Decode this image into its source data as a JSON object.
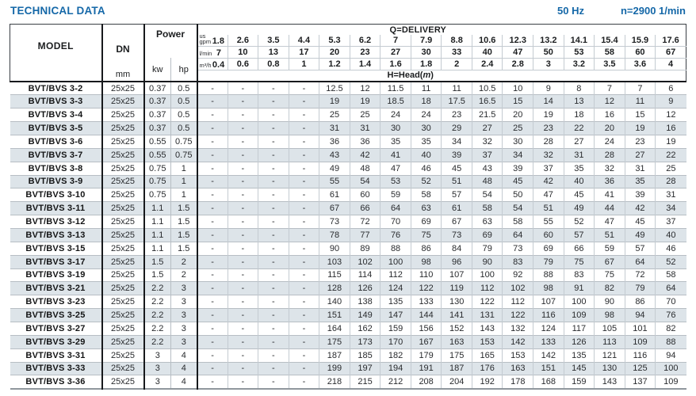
{
  "page": {
    "title": "TECHNICAL DATA",
    "frequency": "50 Hz",
    "speed": "n=2900 1/min"
  },
  "colors": {
    "accent_blue": "#1568a8",
    "row_shade": "#dde4e9",
    "grid_dark": "#17191c",
    "grid_light": "#c4cbd1"
  },
  "table": {
    "headers": {
      "model": "MODEL",
      "dn": "DN",
      "dn_unit": "mm",
      "power": "Power",
      "power_kw": "kw",
      "power_hp": "hp",
      "delivery_label": "Q=DELIVERY",
      "head_prefix": "H=Head(",
      "head_m": "m",
      "head_suffix": ")",
      "unit_us_gpm": [
        "us",
        "gpm"
      ],
      "unit_l_min": "l/min",
      "unit_m3_h": "m³/h"
    },
    "delivery": {
      "us_gpm": [
        1.8,
        2.6,
        3.5,
        4.4,
        5.3,
        6.2,
        7,
        7.9,
        8.8,
        10.6,
        12.3,
        13.2,
        14.1,
        15.4,
        15.9,
        17.6
      ],
      "l_min": [
        7,
        10,
        13,
        17,
        20,
        23,
        27,
        30,
        33,
        40,
        47,
        50,
        53,
        58,
        60,
        67
      ],
      "m3_h": [
        0.4,
        0.6,
        0.8,
        1,
        1.2,
        1.4,
        1.6,
        1.8,
        2,
        2.4,
        2.8,
        3,
        3.2,
        3.5,
        3.6,
        4
      ]
    },
    "rows": [
      {
        "model": "BVT/BVS 3-2",
        "dn": "25x25",
        "kw": "0.37",
        "hp": "0.5",
        "head": [
          "-",
          "-",
          "-",
          "-",
          12.5,
          12,
          11.5,
          11,
          11,
          10.5,
          10,
          9,
          8,
          7,
          7,
          6
        ]
      },
      {
        "model": "BVT/BVS 3-3",
        "dn": "25x25",
        "kw": "0.37",
        "hp": "0.5",
        "head": [
          "-",
          "-",
          "-",
          "-",
          19,
          19,
          18.5,
          18,
          17.5,
          16.5,
          15,
          14,
          13,
          12,
          11,
          9
        ]
      },
      {
        "model": "BVT/BVS 3-4",
        "dn": "25x25",
        "kw": "0.37",
        "hp": "0.5",
        "head": [
          "-",
          "-",
          "-",
          "-",
          25,
          25,
          24,
          24,
          23,
          21.5,
          20,
          19,
          18,
          16,
          15,
          12
        ]
      },
      {
        "model": "BVT/BVS 3-5",
        "dn": "25x25",
        "kw": "0.37",
        "hp": "0.5",
        "head": [
          "-",
          "-",
          "-",
          "-",
          31,
          31,
          30,
          30,
          29,
          27,
          25,
          23,
          22,
          20,
          19,
          16
        ]
      },
      {
        "model": "BVT/BVS 3-6",
        "dn": "25x25",
        "kw": "0.55",
        "hp": "0.75",
        "head": [
          "-",
          "-",
          "-",
          "-",
          36,
          36,
          35,
          35,
          34,
          32,
          30,
          28,
          27,
          24,
          23,
          19
        ]
      },
      {
        "model": "BVT/BVS 3-7",
        "dn": "25x25",
        "kw": "0.55",
        "hp": "0.75",
        "head": [
          "-",
          "-",
          "-",
          "-",
          43,
          42,
          41,
          40,
          39,
          37,
          34,
          32,
          31,
          28,
          27,
          22
        ]
      },
      {
        "model": "BVT/BVS 3-8",
        "dn": "25x25",
        "kw": "0.75",
        "hp": "1",
        "head": [
          "-",
          "-",
          "-",
          "-",
          49,
          48,
          47,
          46,
          45,
          43,
          39,
          37,
          35,
          32,
          31,
          25
        ]
      },
      {
        "model": "BVT/BVS 3-9",
        "dn": "25x25",
        "kw": "0.75",
        "hp": "1",
        "head": [
          "-",
          "-",
          "-",
          "-",
          55,
          54,
          53,
          52,
          51,
          48,
          45,
          42,
          40,
          36,
          35,
          28
        ]
      },
      {
        "model": "BVT/BVS 3-10",
        "dn": "25x25",
        "kw": "0.75",
        "hp": "1",
        "head": [
          "-",
          "-",
          "-",
          "-",
          61,
          60,
          59,
          58,
          57,
          54,
          50,
          47,
          45,
          41,
          39,
          31
        ]
      },
      {
        "model": "BVT/BVS 3-11",
        "dn": "25x25",
        "kw": "1.1",
        "hp": "1.5",
        "head": [
          "-",
          "-",
          "-",
          "-",
          67,
          66,
          64,
          63,
          61,
          58,
          54,
          51,
          49,
          44,
          42,
          34
        ]
      },
      {
        "model": "BVT/BVS 3-12",
        "dn": "25x25",
        "kw": "1.1",
        "hp": "1.5",
        "head": [
          "-",
          "-",
          "-",
          "-",
          73,
          72,
          70,
          69,
          67,
          63,
          58,
          55,
          52,
          47,
          45,
          37
        ]
      },
      {
        "model": "BVT/BVS 3-13",
        "dn": "25x25",
        "kw": "1.1",
        "hp": "1.5",
        "head": [
          "-",
          "-",
          "-",
          "-",
          78,
          77,
          76,
          75,
          73,
          69,
          64,
          60,
          57,
          51,
          49,
          40
        ]
      },
      {
        "model": "BVT/BVS 3-15",
        "dn": "25x25",
        "kw": "1.1",
        "hp": "1.5",
        "head": [
          "-",
          "-",
          "-",
          "-",
          90,
          89,
          88,
          86,
          84,
          79,
          73,
          69,
          66,
          59,
          57,
          46
        ]
      },
      {
        "model": "BVT/BVS 3-17",
        "dn": "25x25",
        "kw": "1.5",
        "hp": "2",
        "head": [
          "-",
          "-",
          "-",
          "-",
          103,
          102,
          100,
          98,
          96,
          90,
          83,
          79,
          75,
          67,
          64,
          52
        ]
      },
      {
        "model": "BVT/BVS 3-19",
        "dn": "25x25",
        "kw": "1.5",
        "hp": "2",
        "head": [
          "-",
          "-",
          "-",
          "-",
          115,
          114,
          112,
          110,
          107,
          100,
          92,
          88,
          83,
          75,
          72,
          58
        ]
      },
      {
        "model": "BVT/BVS 3-21",
        "dn": "25x25",
        "kw": "2.2",
        "hp": "3",
        "head": [
          "-",
          "-",
          "-",
          "-",
          128,
          126,
          124,
          122,
          119,
          112,
          102,
          98,
          91,
          82,
          79,
          64
        ]
      },
      {
        "model": "BVT/BVS 3-23",
        "dn": "25x25",
        "kw": "2.2",
        "hp": "3",
        "head": [
          "-",
          "-",
          "-",
          "-",
          140,
          138,
          135,
          133,
          130,
          122,
          112,
          107,
          100,
          90,
          86,
          70
        ]
      },
      {
        "model": "BVT/BVS 3-25",
        "dn": "25x25",
        "kw": "2.2",
        "hp": "3",
        "head": [
          "-",
          "-",
          "-",
          "-",
          151,
          149,
          147,
          144,
          141,
          131,
          122,
          116,
          109,
          98,
          94,
          76
        ]
      },
      {
        "model": "BVT/BVS 3-27",
        "dn": "25x25",
        "kw": "2.2",
        "hp": "3",
        "head": [
          "-",
          "-",
          "-",
          "-",
          164,
          162,
          159,
          156,
          152,
          143,
          132,
          124,
          117,
          105,
          101,
          82
        ]
      },
      {
        "model": "BVT/BVS 3-29",
        "dn": "25x25",
        "kw": "2.2",
        "hp": "3",
        "head": [
          "-",
          "-",
          "-",
          "-",
          175,
          173,
          170,
          167,
          163,
          153,
          142,
          133,
          126,
          113,
          109,
          88
        ]
      },
      {
        "model": "BVT/BVS 3-31",
        "dn": "25x25",
        "kw": "3",
        "hp": "4",
        "head": [
          "-",
          "-",
          "-",
          "-",
          187,
          185,
          182,
          179,
          175,
          165,
          153,
          142,
          135,
          121,
          116,
          94
        ]
      },
      {
        "model": "BVT/BVS 3-33",
        "dn": "25x25",
        "kw": "3",
        "hp": "4",
        "head": [
          "-",
          "-",
          "-",
          "-",
          199,
          197,
          194,
          191,
          187,
          176,
          163,
          151,
          145,
          130,
          125,
          100
        ]
      },
      {
        "model": "BVT/BVS 3-36",
        "dn": "25x25",
        "kw": "3",
        "hp": "4",
        "head": [
          "-",
          "-",
          "-",
          "-",
          218,
          215,
          212,
          208,
          204,
          192,
          178,
          168,
          159,
          143,
          137,
          109
        ]
      }
    ]
  }
}
